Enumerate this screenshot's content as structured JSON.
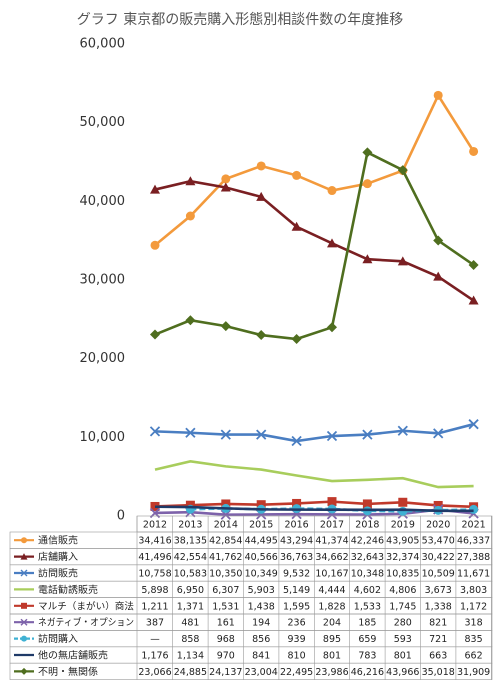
{
  "chart_data": {
    "type": "line",
    "title": "グラフ 東京都の販売購入形態別相談件数の年度推移",
    "categories": [
      "2012",
      "2013",
      "2014",
      "2015",
      "2016",
      "2017",
      "2018",
      "2019",
      "2020",
      "2021"
    ],
    "ylim": [
      0,
      60000
    ],
    "yticks": [
      0,
      {
        "value": 10000,
        "label": "10,000"
      },
      {
        "value": 20000,
        "label": "20,000"
      },
      {
        "value": 30000,
        "label": "30,000"
      },
      {
        "value": 40000,
        "label": "40,000"
      },
      {
        "value": 50000,
        "label": "50,000"
      },
      {
        "value": 60000,
        "label": "60,000"
      }
    ],
    "grid": false,
    "series": [
      {
        "name": "通信販売",
        "color": "#f39a3c",
        "marker": "circle",
        "values": [
          34416,
          38135,
          42854,
          44495,
          43294,
          41374,
          42246,
          43905,
          53470,
          46337
        ],
        "value_labels": [
          "34,416",
          "38,135",
          "42,854",
          "44,495",
          "43,294",
          "41,374",
          "42,246",
          "43,905",
          "53,470",
          "46,337"
        ]
      },
      {
        "name": "店舗購入",
        "color": "#7a1f22",
        "marker": "triangle",
        "values": [
          41496,
          42554,
          41762,
          40566,
          36763,
          34662,
          32643,
          32374,
          30422,
          27388
        ],
        "value_labels": [
          "41,496",
          "42,554",
          "41,762",
          "40,566",
          "36,763",
          "34,662",
          "32,643",
          "32,374",
          "30,422",
          "27,388"
        ]
      },
      {
        "name": "訪問販売",
        "color": "#4a7ec2",
        "marker": "x",
        "values": [
          10758,
          10583,
          10350,
          10349,
          9532,
          10167,
          10348,
          10835,
          10509,
          11671
        ],
        "value_labels": [
          "10,758",
          "10,583",
          "10,350",
          "10,349",
          "9,532",
          "10,167",
          "10,348",
          "10,835",
          "10,509",
          "11,671"
        ]
      },
      {
        "name": "電話勧誘販売",
        "color": "#a8cd5c",
        "marker": "none",
        "values": [
          5898,
          6950,
          6307,
          5903,
          5149,
          4444,
          4602,
          4806,
          3673,
          3803
        ],
        "value_labels": [
          "5,898",
          "6,950",
          "6,307",
          "5,903",
          "5,149",
          "4,444",
          "4,602",
          "4,806",
          "3,673",
          "3,803"
        ]
      },
      {
        "name": "マルチ（まがい）商法",
        "color": "#c0392b",
        "marker": "square",
        "values": [
          1211,
          1371,
          1531,
          1438,
          1595,
          1828,
          1533,
          1745,
          1338,
          1172
        ],
        "value_labels": [
          "1,211",
          "1,371",
          "1,531",
          "1,438",
          "1,595",
          "1,828",
          "1,533",
          "1,745",
          "1,338",
          "1,172"
        ]
      },
      {
        "name": "ネガティブ・オプション",
        "color": "#7d62aa",
        "marker": "x",
        "values": [
          387,
          481,
          161,
          194,
          236,
          204,
          185,
          280,
          821,
          318
        ],
        "value_labels": [
          "387",
          "481",
          "161",
          "194",
          "236",
          "204",
          "185",
          "280",
          "821",
          "318"
        ]
      },
      {
        "name": "訪問購入",
        "color": "#3fb1d3",
        "marker": "circle",
        "dash": true,
        "values": [
          null,
          858,
          968,
          856,
          939,
          895,
          659,
          593,
          721,
          835
        ],
        "value_labels": [
          "—",
          "858",
          "968",
          "856",
          "939",
          "895",
          "659",
          "593",
          "721",
          "835"
        ]
      },
      {
        "name": "他の無店舗販売",
        "color": "#1f3a68",
        "marker": "none",
        "values": [
          1176,
          1134,
          970,
          841,
          810,
          801,
          783,
          801,
          663,
          662
        ],
        "value_labels": [
          "1,176",
          "1,134",
          "970",
          "841",
          "810",
          "801",
          "783",
          "801",
          "663",
          "662"
        ]
      },
      {
        "name": "不明・無関係",
        "color": "#4f6e1f",
        "marker": "diamond",
        "values": [
          23066,
          24885,
          24137,
          23004,
          22495,
          23986,
          46216,
          43966,
          35018,
          31909
        ],
        "value_labels": [
          "23,066",
          "24,885",
          "24,137",
          "23,004",
          "22,495",
          "23,986",
          "46,216",
          "43,966",
          "35,018",
          "31,909"
        ]
      }
    ]
  }
}
